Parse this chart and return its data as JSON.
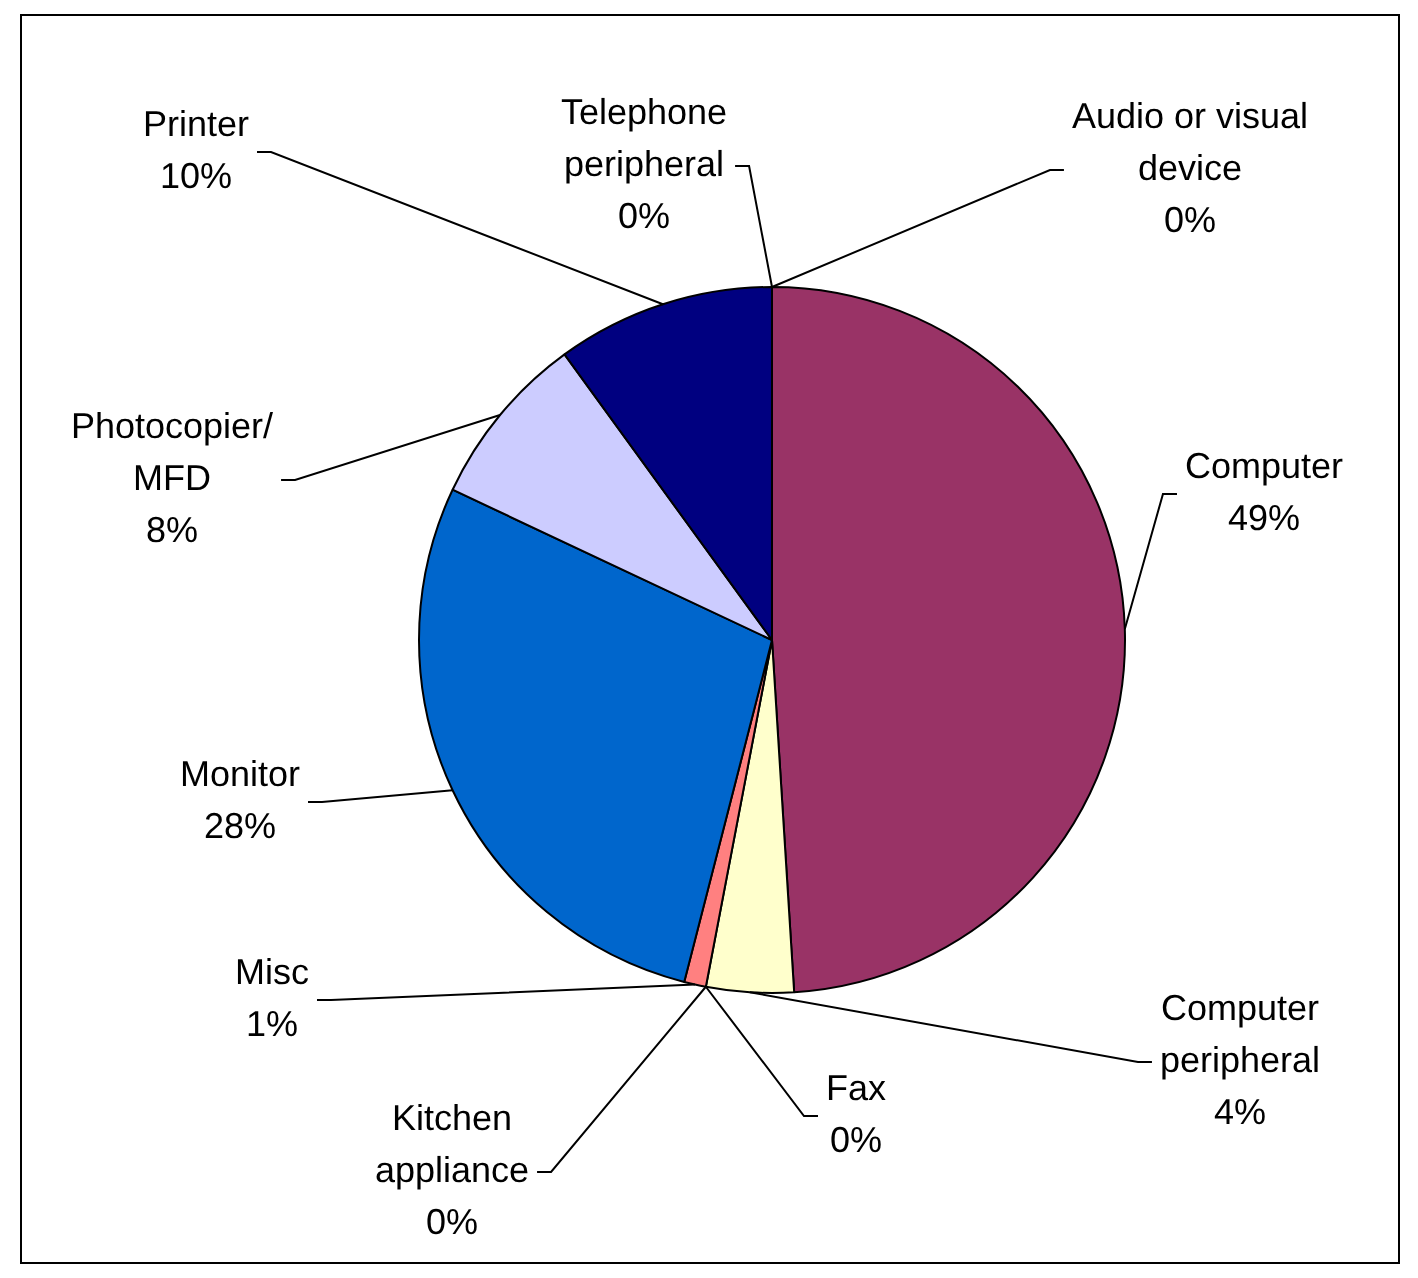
{
  "chart_data": {
    "type": "pie",
    "categories": [
      "Audio or visual device",
      "Computer",
      "Computer peripheral",
      "Fax",
      "Kitchen appliance",
      "Misc",
      "Monitor",
      "Photocopier/MFD",
      "Printer",
      "Telephone peripheral"
    ],
    "values": [
      0,
      49,
      4,
      0,
      0,
      1,
      28,
      8,
      10,
      0
    ],
    "value_labels": [
      "0%",
      "49%",
      "4%",
      "0%",
      "0%",
      "1%",
      "28%",
      "8%",
      "10%",
      "0%"
    ],
    "colors": [
      "#9999ff",
      "#993366",
      "#ffffcc",
      "#ccffff",
      "#660066",
      "#ff8080",
      "#0066cc",
      "#ccccff",
      "#000080",
      "#ff00ff"
    ]
  }
}
